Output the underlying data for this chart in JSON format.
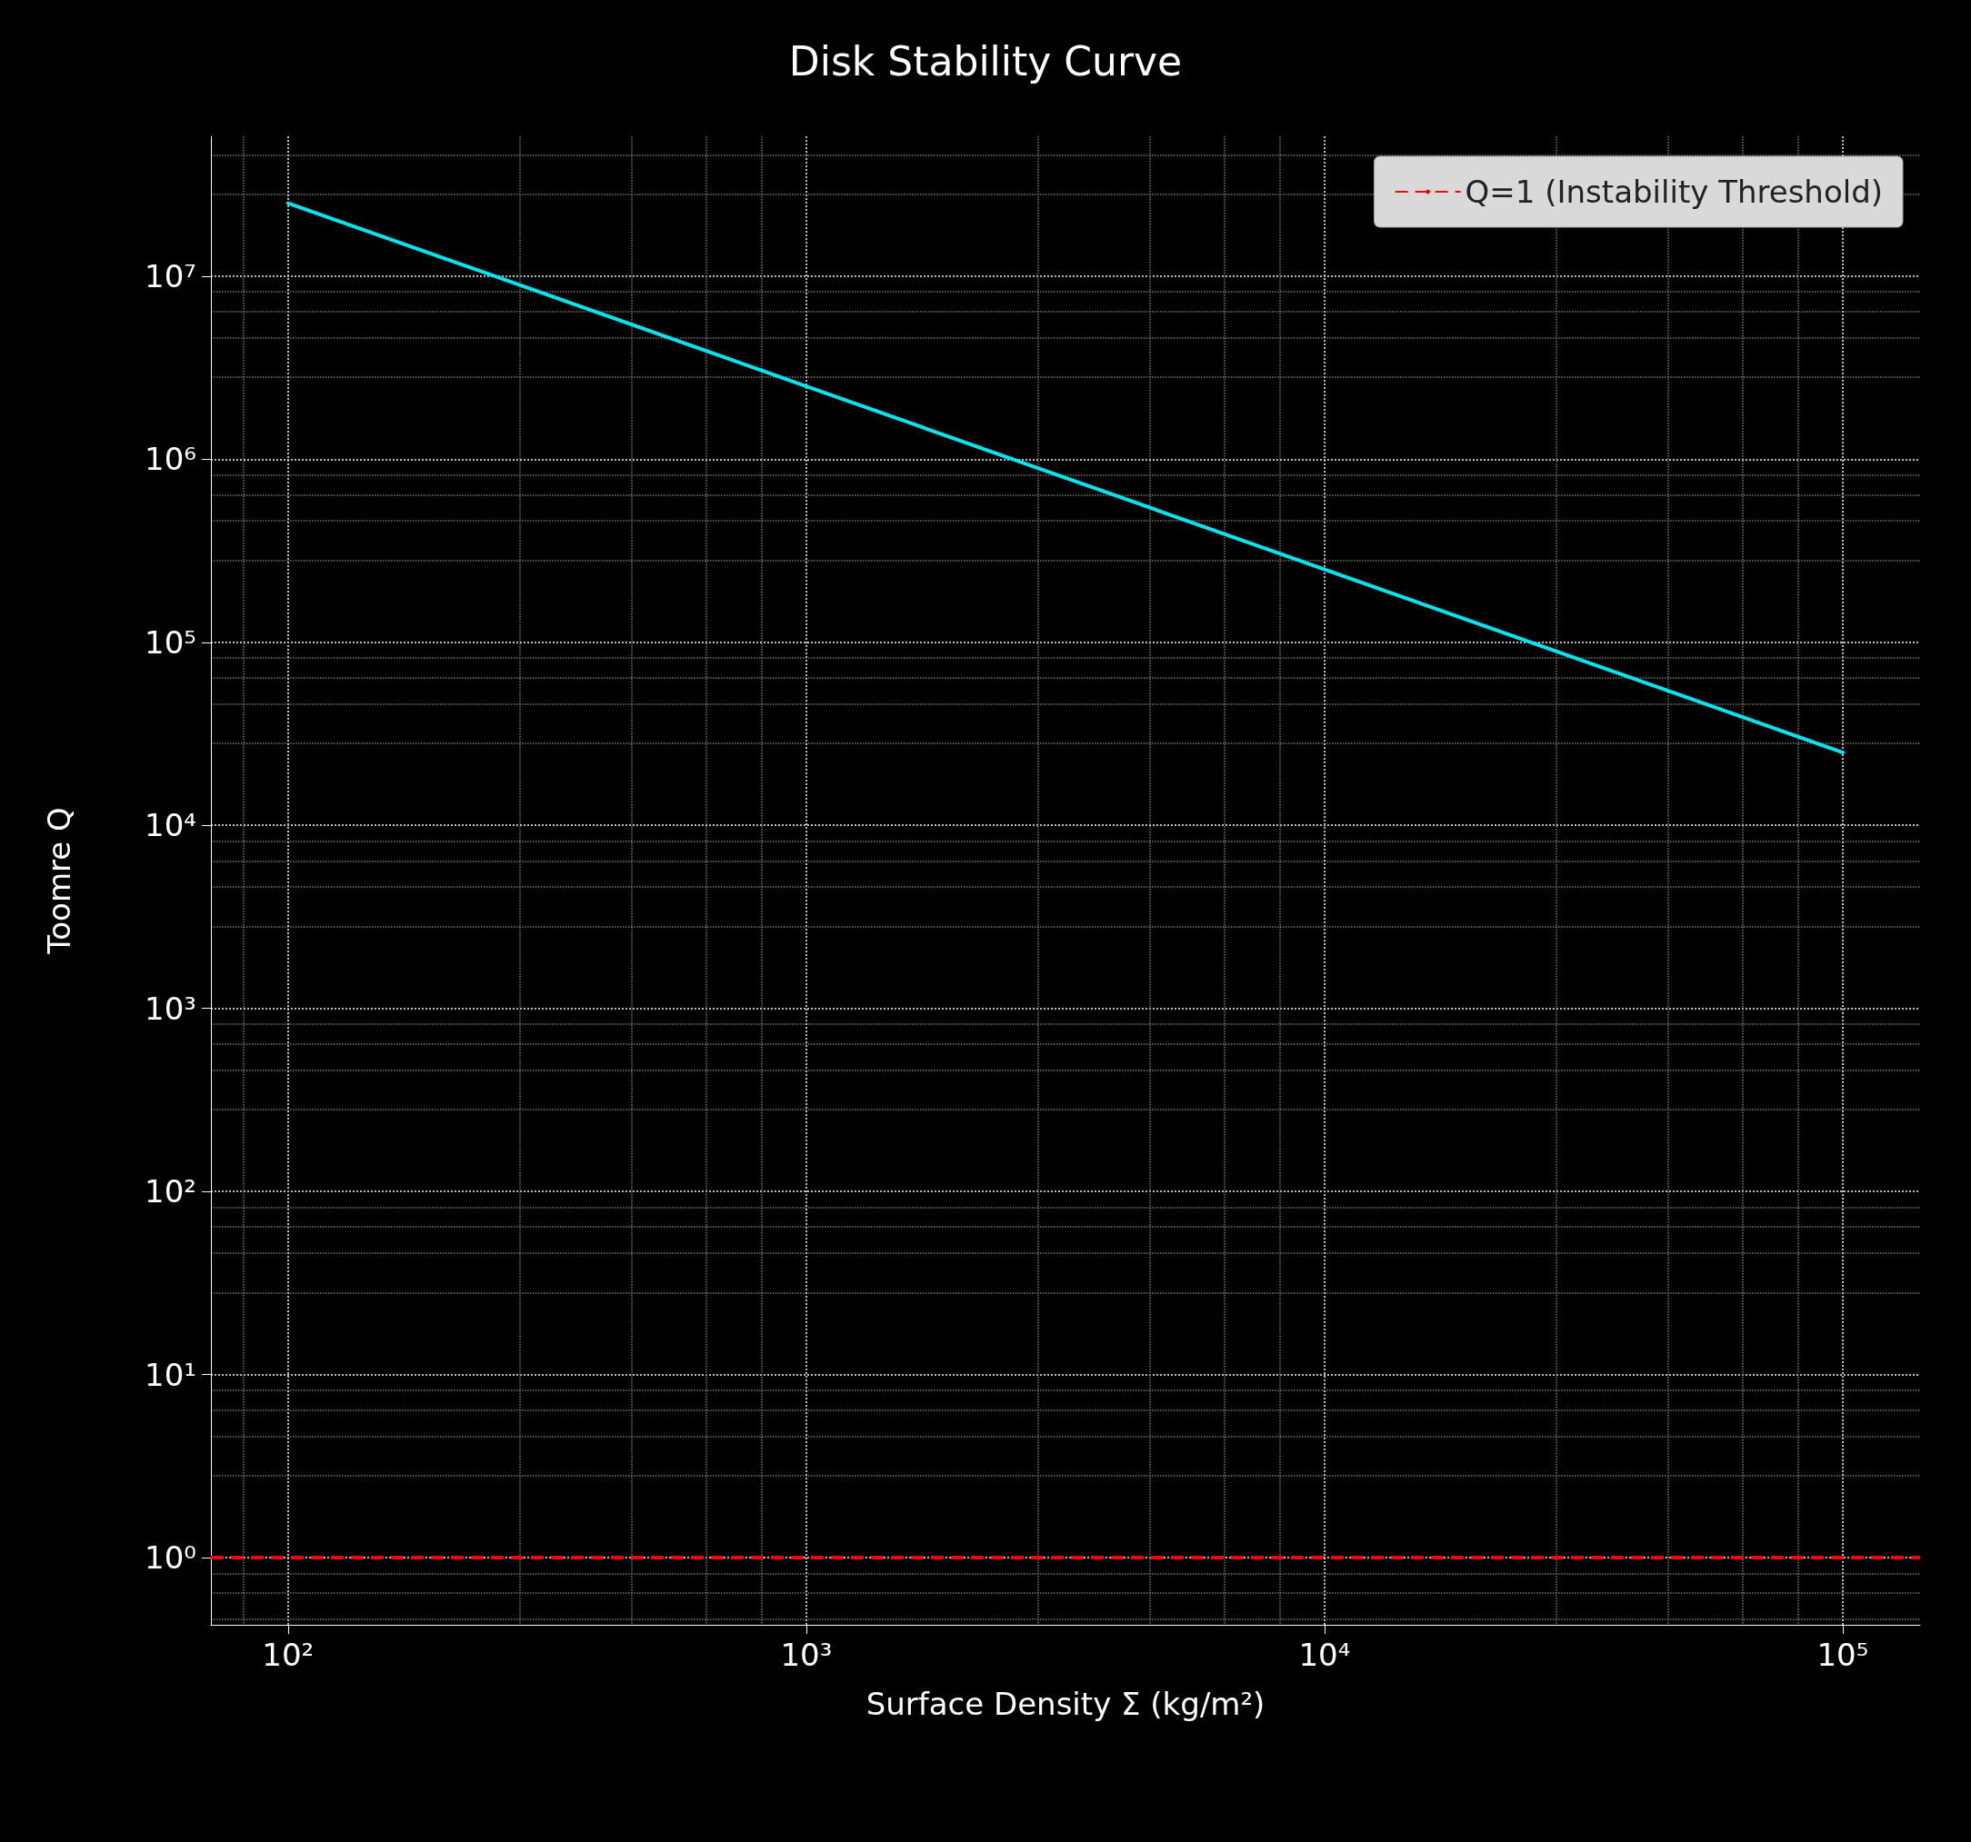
{
  "chart_data": {
    "type": "line",
    "title": "Disk Stability Curve",
    "xlabel": "Surface Density Σ (kg/m²)",
    "ylabel": "Toomre Q",
    "x": [
      100,
      1000,
      10000,
      100000
    ],
    "series": [
      {
        "color": "#00e5ee",
        "values": [
          25000000,
          2500000,
          250000,
          25000
        ]
      }
    ],
    "log": "xy",
    "xlim": [
      71,
      141000
    ],
    "ylim": [
      0.43,
      58000000
    ],
    "xticks": [
      {
        "value": 100,
        "label": "10²"
      },
      {
        "value": 1000,
        "label": "10³"
      },
      {
        "value": 10000,
        "label": "10⁴"
      },
      {
        "value": 100000,
        "label": "10⁵"
      }
    ],
    "yticks": [
      {
        "value": 1,
        "label": "10⁰"
      },
      {
        "value": 10,
        "label": "10¹"
      },
      {
        "value": 100,
        "label": "10²"
      },
      {
        "value": 1000,
        "label": "10³"
      },
      {
        "value": 10000,
        "label": "10⁴"
      },
      {
        "value": 100000,
        "label": "10⁵"
      },
      {
        "value": 1000000,
        "label": "10⁶"
      },
      {
        "value": 10000000,
        "label": "10⁷"
      }
    ],
    "ref_lines": [
      {
        "axis": "y",
        "value": 1,
        "label": "Q=1 (Instability Threshold)",
        "color": "#ff0000",
        "line_style": "dashed"
      }
    ],
    "grid": true,
    "legend": "top right",
    "marker": "none",
    "line_style": "solid"
  }
}
